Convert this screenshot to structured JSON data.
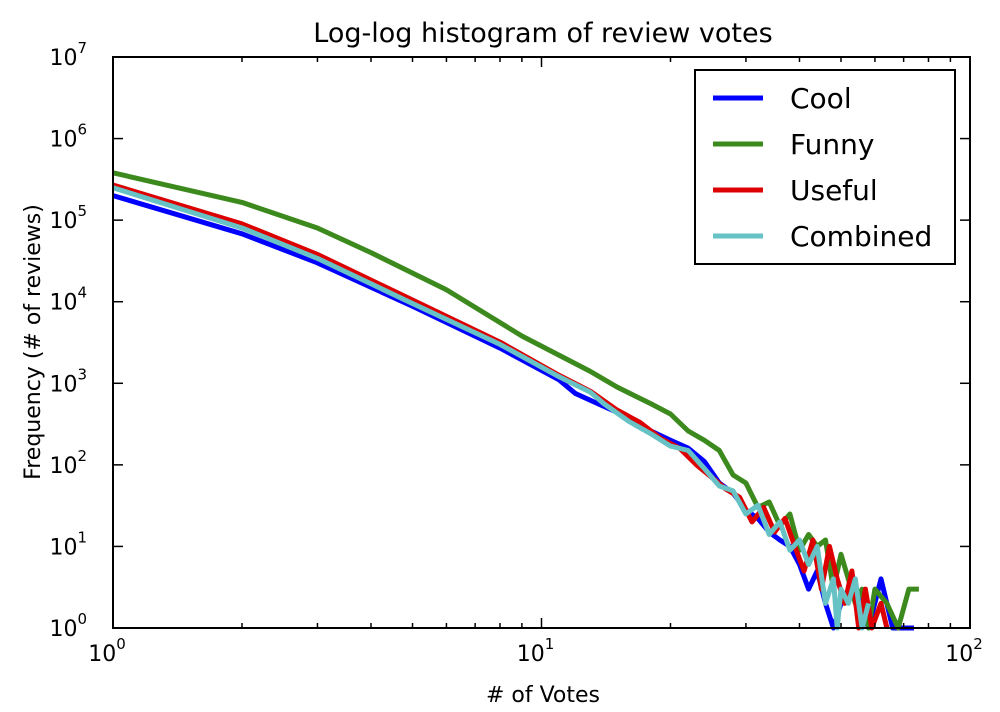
{
  "chart_data": {
    "type": "line",
    "title": "Log-log histogram of review votes",
    "xlabel": "# of Votes",
    "ylabel": "Frequency (# of reviews)",
    "xscale": "log",
    "yscale": "log",
    "xlim": [
      1,
      100
    ],
    "ylim": [
      1,
      10000000
    ],
    "x_ticks": [
      {
        "base": "10",
        "exp": "0",
        "value": 1
      },
      {
        "base": "10",
        "exp": "1",
        "value": 10
      },
      {
        "base": "10",
        "exp": "2",
        "value": 100
      }
    ],
    "y_ticks": [
      {
        "base": "10",
        "exp": "0",
        "value": 1
      },
      {
        "base": "10",
        "exp": "1",
        "value": 10
      },
      {
        "base": "10",
        "exp": "2",
        "value": 100
      },
      {
        "base": "10",
        "exp": "3",
        "value": 1000
      },
      {
        "base": "10",
        "exp": "4",
        "value": 10000
      },
      {
        "base": "10",
        "exp": "5",
        "value": 100000
      },
      {
        "base": "10",
        "exp": "6",
        "value": 1000000
      },
      {
        "base": "10",
        "exp": "7",
        "value": 10000000
      }
    ],
    "grid": false,
    "legend_position": "top-right",
    "series": [
      {
        "name": "Cool",
        "color": "#0000ff",
        "points": [
          [
            1,
            200000
          ],
          [
            2,
            68000
          ],
          [
            3,
            30000
          ],
          [
            5,
            8800
          ],
          [
            8,
            2700
          ],
          [
            11,
            1100
          ],
          [
            12,
            750
          ],
          [
            14,
            520
          ],
          [
            16,
            380
          ],
          [
            18,
            260
          ],
          [
            20,
            200
          ],
          [
            22,
            160
          ],
          [
            24,
            110
          ],
          [
            26,
            60
          ],
          [
            28,
            45
          ],
          [
            30,
            28
          ],
          [
            32,
            22
          ],
          [
            34,
            15
          ],
          [
            36,
            12
          ],
          [
            38,
            10
          ],
          [
            40,
            6
          ],
          [
            42,
            3
          ],
          [
            44,
            5
          ],
          [
            46,
            2
          ],
          [
            48,
            1
          ],
          [
            50,
            2
          ],
          [
            54,
            3
          ],
          [
            58,
            1
          ],
          [
            62,
            4
          ],
          [
            66,
            1
          ],
          [
            70,
            1
          ],
          [
            74,
            1
          ]
        ]
      },
      {
        "name": "Funny",
        "color": "#3c8a1e",
        "points": [
          [
            1,
            380000
          ],
          [
            2,
            165000
          ],
          [
            3,
            80000
          ],
          [
            4,
            40000
          ],
          [
            6,
            14000
          ],
          [
            9,
            3800
          ],
          [
            13,
            1400
          ],
          [
            15,
            900
          ],
          [
            18,
            560
          ],
          [
            20,
            420
          ],
          [
            22,
            260
          ],
          [
            24,
            200
          ],
          [
            26,
            150
          ],
          [
            28,
            75
          ],
          [
            30,
            60
          ],
          [
            32,
            30
          ],
          [
            34,
            35
          ],
          [
            36,
            18
          ],
          [
            38,
            25
          ],
          [
            40,
            9
          ],
          [
            42,
            14
          ],
          [
            44,
            10
          ],
          [
            46,
            12
          ],
          [
            48,
            3
          ],
          [
            50,
            8
          ],
          [
            52,
            4
          ],
          [
            54,
            2
          ],
          [
            56,
            3
          ],
          [
            58,
            1
          ],
          [
            60,
            3
          ],
          [
            64,
            2
          ],
          [
            68,
            1
          ],
          [
            72,
            3
          ],
          [
            76,
            3
          ]
        ]
      },
      {
        "name": "Useful",
        "color": "#dd0000",
        "points": [
          [
            1,
            270000
          ],
          [
            2,
            90000
          ],
          [
            3,
            38000
          ],
          [
            5,
            10500
          ],
          [
            8,
            3200
          ],
          [
            11,
            1250
          ],
          [
            13,
            800
          ],
          [
            15,
            470
          ],
          [
            17,
            330
          ],
          [
            19,
            210
          ],
          [
            21,
            160
          ],
          [
            23,
            100
          ],
          [
            25,
            70
          ],
          [
            27,
            50
          ],
          [
            29,
            40
          ],
          [
            31,
            20
          ],
          [
            33,
            30
          ],
          [
            35,
            15
          ],
          [
            37,
            22
          ],
          [
            39,
            10
          ],
          [
            41,
            5
          ],
          [
            43,
            12
          ],
          [
            45,
            3
          ],
          [
            47,
            10
          ],
          [
            49,
            4
          ],
          [
            51,
            2
          ],
          [
            53,
            5
          ],
          [
            55,
            1
          ],
          [
            57,
            3
          ],
          [
            59,
            1
          ],
          [
            62,
            2
          ],
          [
            64,
            1
          ]
        ]
      },
      {
        "name": "Combined",
        "color": "#66c2c4",
        "points": [
          [
            1,
            250000
          ],
          [
            2,
            80000
          ],
          [
            3,
            34000
          ],
          [
            5,
            9500
          ],
          [
            8,
            3000
          ],
          [
            11,
            1200
          ],
          [
            13,
            780
          ],
          [
            14,
            560
          ],
          [
            16,
            340
          ],
          [
            18,
            240
          ],
          [
            20,
            170
          ],
          [
            22,
            150
          ],
          [
            24,
            90
          ],
          [
            26,
            55
          ],
          [
            28,
            48
          ],
          [
            30,
            25
          ],
          [
            32,
            32
          ],
          [
            34,
            14
          ],
          [
            36,
            20
          ],
          [
            38,
            9
          ],
          [
            40,
            12
          ],
          [
            42,
            6
          ],
          [
            44,
            10
          ],
          [
            46,
            2
          ],
          [
            48,
            4
          ],
          [
            49,
            1
          ],
          [
            50,
            3
          ],
          [
            52,
            2
          ],
          [
            54,
            4
          ],
          [
            56,
            1
          ],
          [
            58,
            2
          ]
        ]
      }
    ]
  }
}
